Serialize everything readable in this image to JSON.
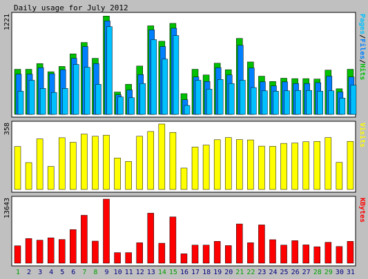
{
  "chart_data": [
    {
      "type": "bar",
      "title": "Daily usage for July 2012",
      "ylabel_max": "1221",
      "legend": [
        "Pages",
        "/",
        "Files",
        "/",
        "Hits"
      ],
      "legend_colors": [
        "#00c0ff",
        "#000000",
        "#0080ff",
        "#000000",
        "#00c000"
      ],
      "categories": [
        "1",
        "2",
        "3",
        "4",
        "5",
        "6",
        "7",
        "8",
        "9",
        "10",
        "11",
        "12",
        "13",
        "14",
        "15",
        "16",
        "17",
        "18",
        "19",
        "20",
        "21",
        "22",
        "23",
        "24",
        "25",
        "26",
        "27",
        "28",
        "29",
        "30",
        "31"
      ],
      "weekend": [
        "1",
        "7",
        "8",
        "14",
        "15",
        "21",
        "22",
        "28",
        "29"
      ],
      "ylim": [
        0,
        1221
      ],
      "series": [
        {
          "name": "Hits",
          "color": "#00c000",
          "values": [
            555,
            555,
            625,
            525,
            590,
            745,
            885,
            690,
            1210,
            275,
            370,
            595,
            1090,
            900,
            1120,
            255,
            555,
            485,
            630,
            550,
            935,
            645,
            470,
            405,
            445,
            440,
            440,
            435,
            545,
            315,
            555
          ]
        },
        {
          "name": "Files",
          "color": "#0080ff",
          "values": [
            495,
            495,
            575,
            500,
            550,
            690,
            835,
            625,
            1150,
            240,
            300,
            490,
            1040,
            835,
            1060,
            180,
            460,
            405,
            575,
            485,
            850,
            570,
            400,
            350,
            400,
            380,
            380,
            390,
            470,
            275,
            460
          ]
        },
        {
          "name": "Pages",
          "color": "#00c0ff",
          "values": [
            285,
            420,
            320,
            270,
            320,
            615,
            580,
            370,
            1080,
            215,
            205,
            380,
            920,
            680,
            970,
            110,
            420,
            310,
            430,
            380,
            420,
            330,
            290,
            285,
            290,
            295,
            295,
            285,
            290,
            200,
            360
          ]
        }
      ]
    },
    {
      "type": "bar",
      "ylabel_max": "358",
      "legend": [
        "Visits"
      ],
      "legend_colors": [
        "#ffff00"
      ],
      "categories": [
        "1",
        "2",
        "3",
        "4",
        "5",
        "6",
        "7",
        "8",
        "9",
        "10",
        "11",
        "12",
        "13",
        "14",
        "15",
        "16",
        "17",
        "18",
        "19",
        "20",
        "21",
        "22",
        "23",
        "24",
        "25",
        "26",
        "27",
        "28",
        "29",
        "30",
        "31"
      ],
      "ylim": [
        0,
        358
      ],
      "series": [
        {
          "name": "Visits",
          "color": "#ffff00",
          "values": [
            235,
            147,
            277,
            126,
            283,
            258,
            303,
            291,
            297,
            172,
            153,
            291,
            317,
            358,
            312,
            117,
            232,
            243,
            272,
            284,
            273,
            271,
            237,
            236,
            252,
            254,
            261,
            263,
            284,
            148,
            263
          ]
        }
      ]
    },
    {
      "type": "bar",
      "ylabel_max": "13643",
      "legend": [
        "KBytes"
      ],
      "legend_colors": [
        "#ff0000"
      ],
      "categories": [
        "1",
        "2",
        "3",
        "4",
        "5",
        "6",
        "7",
        "8",
        "9",
        "10",
        "11",
        "12",
        "13",
        "14",
        "15",
        "16",
        "17",
        "18",
        "19",
        "20",
        "21",
        "22",
        "23",
        "24",
        "25",
        "26",
        "27",
        "28",
        "29",
        "30",
        "31"
      ],
      "ylim": [
        0,
        13643
      ],
      "series": [
        {
          "name": "KBytes",
          "color": "#ff0000",
          "values": [
            3700,
            5250,
            4900,
            5400,
            5050,
            7150,
            10200,
            4700,
            13643,
            2250,
            2250,
            4350,
            10650,
            4250,
            9850,
            2000,
            3850,
            3850,
            4650,
            3750,
            8350,
            4350,
            8150,
            5000,
            3850,
            4800,
            3900,
            3500,
            4450,
            3550,
            4650
          ]
        }
      ]
    }
  ]
}
